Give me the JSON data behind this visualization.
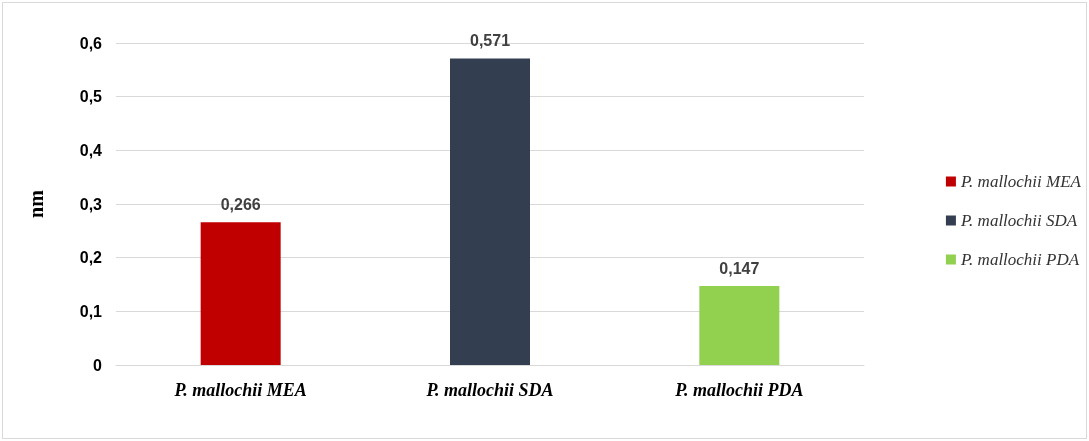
{
  "chart_data": {
    "type": "bar",
    "ylabel": "nm",
    "categories": [
      "P. mallochii MEA",
      "P. mallochii SDA",
      "P. mallochii PDA"
    ],
    "series": [
      {
        "name": "P. mallochii MEA",
        "color": "#c00000",
        "values": [
          0.266,
          null,
          null
        ],
        "value_labels": [
          "0,266",
          null,
          null
        ]
      },
      {
        "name": "P. mallochii SDA",
        "color": "#333f50",
        "values": [
          null,
          0.571,
          null
        ],
        "value_labels": [
          null,
          "0,571",
          null
        ]
      },
      {
        "name": "P. mallochii PDA",
        "color": "#92d050",
        "values": [
          null,
          null,
          0.147
        ],
        "value_labels": [
          null,
          null,
          "0,147"
        ]
      }
    ],
    "ylim": [
      0,
      0.6
    ],
    "yticks": [
      {
        "value": 0,
        "label": "0"
      },
      {
        "value": 0.1,
        "label": "0,1"
      },
      {
        "value": 0.2,
        "label": "0,2"
      },
      {
        "value": 0.3,
        "label": "0,3"
      },
      {
        "value": 0.4,
        "label": "0,4"
      },
      {
        "value": 0.5,
        "label": "0,5"
      },
      {
        "value": 0.6,
        "label": "0,6"
      }
    ],
    "grid": "y",
    "legend": "right"
  }
}
